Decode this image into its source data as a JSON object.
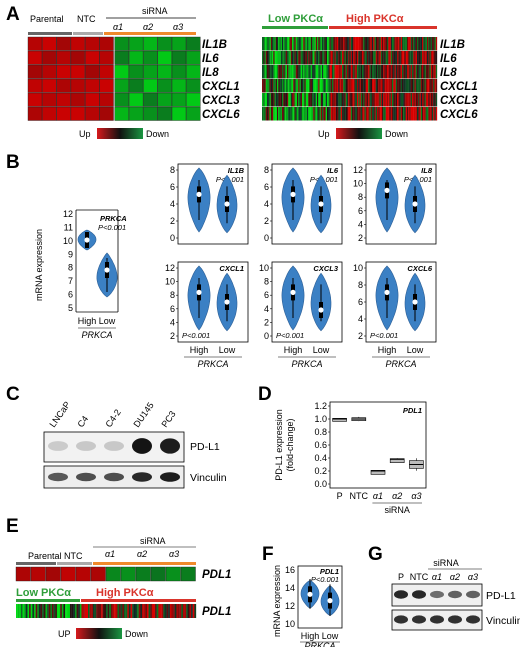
{
  "panels": {
    "A": {
      "letter": "A",
      "left_heatmap": {
        "groups": [
          "Parental",
          "NTC"
        ],
        "sirna_label": "siRNA",
        "sirna_groups": [
          "α1",
          "α2",
          "α3"
        ],
        "genes": [
          "IL1B",
          "IL6",
          "IL8",
          "CXCL1",
          "CXCL3",
          "CXCL6"
        ],
        "legend": {
          "up": "Up",
          "down": "Down"
        }
      },
      "right_heatmap": {
        "low_label": "Low PKCα",
        "high_label": "High PKCα",
        "genes": [
          "IL1B",
          "IL6",
          "IL8",
          "CXCL1",
          "CXCL3",
          "CXCL6"
        ],
        "legend": {
          "up": "Up",
          "down": "Down"
        }
      }
    },
    "B": {
      "letter": "B",
      "ylabel": "mRNA expression",
      "prkca_plot": {
        "gene": "PRKCA",
        "p": "P<0.001",
        "yticks": [
          "12",
          "11",
          "10",
          "9",
          "8",
          "7",
          "6",
          "5"
        ],
        "xticks": [
          "High",
          "Low"
        ],
        "xlabel": "PRKCA"
      },
      "violins": [
        {
          "gene": "IL1B",
          "p": "P<0.001",
          "yticks": [
            "8",
            "6",
            "4",
            "2",
            "0"
          ],
          "medians": [
            5.0,
            3.5
          ]
        },
        {
          "gene": "IL6",
          "p": "P<0.001",
          "yticks": [
            "8",
            "6",
            "4",
            "2",
            "0"
          ],
          "medians": [
            5.0,
            4.0
          ]
        },
        {
          "gene": "IL8",
          "p": "P<0.001",
          "yticks": [
            "12",
            "10",
            "8",
            "6",
            "4",
            "2"
          ],
          "medians": [
            6.2,
            5.5
          ]
        },
        {
          "gene": "CXCL1",
          "p": "P<0.001",
          "yticks": [
            "12",
            "10",
            "8",
            "6",
            "4",
            "2"
          ],
          "medians": [
            6.0,
            4.8
          ]
        },
        {
          "gene": "CXCL3",
          "p": "P<0.001",
          "yticks": [
            "10",
            "8",
            "6",
            "4",
            "2",
            "0"
          ],
          "medians": [
            3.5,
            2.5
          ]
        },
        {
          "gene": "CXCL6",
          "p": "P<0.001",
          "yticks": [
            "10",
            "8",
            "6",
            "4",
            "2"
          ],
          "medians": [
            5.2,
            4.2
          ]
        }
      ],
      "xticks": [
        "High",
        "Low"
      ],
      "xlabel": "PRKCA"
    },
    "C": {
      "letter": "C",
      "lanes": [
        "LNCaP",
        "C4",
        "C4-2",
        "DU145",
        "PC3"
      ],
      "bands": [
        "PD-L1",
        "Vinculin"
      ]
    },
    "D": {
      "letter": "D",
      "gene": "PDL1",
      "ylabel": "PD-L1 expression\n(fold-change)",
      "yticks": [
        "1.2",
        "1.0",
        "0.8",
        "0.6",
        "0.4",
        "0.2",
        "0.0"
      ],
      "xticks": [
        "P",
        "NTC",
        "α1",
        "α2",
        "α3"
      ],
      "xgroup_label": "siRNA"
    },
    "E": {
      "letter": "E",
      "sirna_label": "siRNA",
      "groups": [
        "Parental",
        "NTC"
      ],
      "sirna_groups": [
        "α1",
        "α2",
        "α3"
      ],
      "gene": "PDL1",
      "low_label": "Low PKCα",
      "high_label": "High PKCα",
      "legend": {
        "up": "UP",
        "down": "Down"
      }
    },
    "F": {
      "letter": "F",
      "gene": "PDL1",
      "p": "P<0.001",
      "ylabel": "mRNA expression",
      "yticks": [
        "16",
        "14",
        "12",
        "10"
      ],
      "xticks": [
        "High",
        "Low"
      ],
      "xlabel": "PRKCA"
    },
    "G": {
      "letter": "G",
      "sirna_label": "siRNA",
      "lanes": [
        "P",
        "NTC",
        "α1",
        "α2",
        "α3"
      ],
      "bands": [
        "PD-L1",
        "Vinculin"
      ]
    }
  },
  "chart_data": [
    {
      "type": "heatmap",
      "rows": [
        "IL1B",
        "IL6",
        "IL8",
        "CXCL1",
        "CXCL3",
        "CXCL6"
      ],
      "columns": [
        "Parental",
        "Parental",
        "Parental",
        "NTC",
        "NTC",
        "NTC",
        "α1",
        "α1",
        "α2",
        "α2",
        "α3",
        "α3"
      ],
      "values": [
        [
          0.8,
          0.9,
          0.7,
          0.85,
          0.8,
          0.75,
          -0.6,
          -0.7,
          -0.8,
          -0.6,
          -0.7,
          -0.5
        ],
        [
          0.9,
          0.7,
          0.8,
          0.7,
          0.9,
          0.8,
          -0.5,
          -0.8,
          -0.6,
          -0.9,
          -0.5,
          -0.7
        ],
        [
          0.7,
          0.8,
          0.9,
          0.9,
          0.7,
          0.85,
          -0.9,
          -0.6,
          -0.7,
          -0.8,
          -0.6,
          -0.8
        ],
        [
          0.85,
          0.9,
          0.75,
          0.8,
          0.85,
          0.9,
          -0.7,
          -0.5,
          -0.9,
          -0.6,
          -0.8,
          -0.6
        ],
        [
          0.9,
          0.8,
          0.85,
          0.75,
          0.9,
          0.8,
          -0.6,
          -0.9,
          -0.5,
          -0.7,
          -0.7,
          -0.9
        ],
        [
          0.75,
          0.85,
          0.9,
          0.9,
          0.8,
          0.7,
          -0.8,
          -0.7,
          -0.6,
          -0.5,
          -0.9,
          -0.7
        ]
      ],
      "legend": {
        "up": "Up",
        "down": "Down"
      }
    },
    {
      "type": "bar",
      "title": "PDL1",
      "categories": [
        "P",
        "NTC",
        "α1",
        "α2",
        "α3"
      ],
      "values": [
        1.0,
        1.0,
        0.2,
        0.38,
        0.3
      ],
      "ylabel": "PD-L1 expression (fold-change)",
      "ylim": [
        0.0,
        1.2
      ]
    },
    {
      "type": "scatter",
      "title": "PDL1",
      "categories": [
        "High",
        "Low"
      ],
      "medians": [
        13.3,
        12.6
      ],
      "ylabel": "mRNA expression",
      "ylim": [
        10,
        16
      ]
    }
  ],
  "colors": {
    "up": "#d7191c",
    "down": "#1a9641",
    "violin": "#3b80c4",
    "low_pkc": "#2f9e3a",
    "high_pkc": "#d9342b",
    "sirna_bar": "#f08a2c",
    "parental_bar": "#666666",
    "ntc_bar": "#aaaaaa"
  }
}
